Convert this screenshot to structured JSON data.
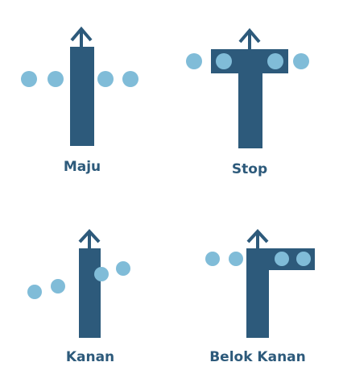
{
  "colors": {
    "road": "#2d5a7b",
    "dot": "#80bcd8",
    "label": "#2d5a7b",
    "background": "#ffffff"
  },
  "panels": [
    {
      "id": "maju",
      "label": "Maju",
      "arrow_icon": "up-arrow-icon"
    },
    {
      "id": "stop",
      "label": "Stop",
      "arrow_icon": "up-arrow-icon"
    },
    {
      "id": "kanan",
      "label": "Kanan",
      "arrow_icon": "up-arrow-icon"
    },
    {
      "id": "belok-kanan",
      "label": "Belok Kanan",
      "arrow_icon": "up-arrow-icon"
    }
  ]
}
